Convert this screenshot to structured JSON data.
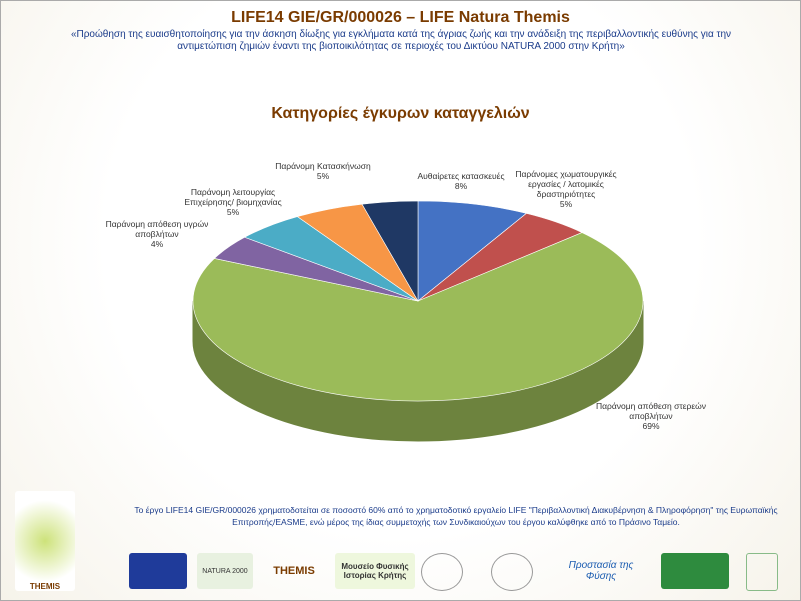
{
  "header": {
    "title": "LIFE14 GIE/GR/000026 – LIFE Natura Themis",
    "subtitle": "«Προώθηση της ευαισθητοποίησης για την άσκηση δίωξης για εγκλήματα κατά της άγριας ζωής και την ανάδειξη της περιβαλλοντικής ευθύνης για την αντιμετώπιση ζημιών έναντι της βιοποικιλότητας σε περιοχές του Δικτύου NATURA 2000 στην Κρήτη»"
  },
  "chart_data": {
    "type": "pie",
    "title": "Κατηγορίες έγκυρων καταγγελιών",
    "categories": [
      "Αυθαίρετες κατασκευές",
      "Παράνομες χωματουργικές εργασίες / λατομικές δραστηριότητες",
      "Παράνομη απόθεση στερεών αποβλήτων",
      "Παράνομη απόθεση υγρών αποβλήτων",
      "Παράνομη λειτουργίας Επιχείρησης/ βιομηχανίας",
      "Παράνομη Κατασκήνωση",
      null
    ],
    "values": [
      8,
      5,
      69,
      4,
      5,
      5,
      4
    ],
    "value_labels": [
      "8%",
      "5%",
      "69%",
      "4%",
      "5%",
      "5%",
      null
    ],
    "colors": [
      "#4472c4",
      "#c0504d",
      "#9bbb59",
      "#8064a2",
      "#4bacc6",
      "#f79646",
      "#1f3864"
    ]
  },
  "footer": {
    "text": "Το έργο LIFE14 GIE/GR/000026 χρηματοδοτείται σε ποσοστό 60% από το χρηματοδοτικό εργαλείο LIFE \"Περιβαλλοντική Διακυβέρνηση & Πληροφόρηση\" της Ευρωπαϊκής Επιτροπής/EASME, ενώ μέρος της ίδιας συμμετοχής των Συνδικαιούχων του έργου καλύφθηκε από το Πράσινο Ταμείο.",
    "logos": [
      "THEMIS",
      "NATURA 2000",
      "THEMIS",
      "Μουσείο Φυσικής Ιστορίας Κρήτης",
      "Προστασία της Φύσης"
    ]
  }
}
